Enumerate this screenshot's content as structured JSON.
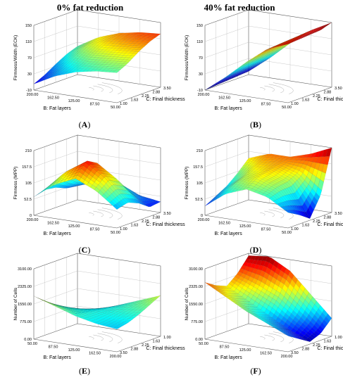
{
  "column_titles": [
    "0% fat reduction",
    "40% fat reduction"
  ],
  "chart_data": [
    {
      "type": "surface3d",
      "panel": "A",
      "column": 0,
      "row": 0,
      "zlabel": "Firmness/Width (ECK)",
      "xlabel": "B: Fat layers",
      "ylabel": "C: Final thickness",
      "zticks": [
        "150",
        "110",
        "70",
        "30",
        "-10"
      ],
      "zlim": [
        -10,
        150
      ],
      "xticks": [
        "200.00",
        "162.50",
        "125.00",
        "87.50",
        "50.00"
      ],
      "yticks": [
        "1.00",
        "1.63",
        "2.25",
        "2.88",
        "3.50"
      ],
      "grid": [
        [
          5,
          32,
          50,
          60,
          64
        ],
        [
          18,
          46,
          64,
          74,
          78
        ],
        [
          35,
          64,
          82,
          92,
          97
        ],
        [
          50,
          80,
          98,
          108,
          112
        ],
        [
          60,
          90,
          108,
          118,
          122
        ]
      ],
      "panel_label": "A"
    },
    {
      "type": "surface3d",
      "panel": "B",
      "column": 1,
      "row": 0,
      "zlabel": "Firmness/Width (ECK)",
      "xlabel": "B: Fat layers",
      "ylabel": "C: Final thickness",
      "zticks": [
        "150",
        "110",
        "70",
        "30",
        "-10"
      ],
      "zlim": [
        -10,
        150
      ],
      "xticks": [
        "200.00",
        "162.50",
        "125.00",
        "87.50",
        "50.00"
      ],
      "yticks": [
        "1.00",
        "1.63",
        "2.25",
        "2.88",
        "3.50"
      ],
      "grid": [
        [
          -10,
          30,
          75,
          115,
          135
        ],
        [
          -8,
          32,
          77,
          117,
          137
        ],
        [
          -6,
          34,
          79,
          119,
          139
        ],
        [
          -4,
          36,
          81,
          121,
          141
        ],
        [
          -2,
          38,
          83,
          123,
          150
        ]
      ],
      "panel_label": "B"
    },
    {
      "type": "surface3d",
      "panel": "C",
      "column": 0,
      "row": 1,
      "zlabel": "Firmness (MPP)",
      "xlabel": "B: Fat layers",
      "ylabel": "C: Final thickness",
      "zticks": [
        "210",
        "157.5",
        "105",
        "52.5",
        "0"
      ],
      "zlim": [
        0,
        210
      ],
      "xticks": [
        "200.00",
        "162.50",
        "125.00",
        "87.50",
        "50.00"
      ],
      "yticks": [
        "1.00",
        "1.63",
        "2.25",
        "2.88",
        "3.50"
      ],
      "grid": [
        [
          60,
          110,
          140,
          110,
          60
        ],
        [
          70,
          140,
          185,
          140,
          70
        ],
        [
          65,
          130,
          165,
          120,
          55
        ],
        [
          50,
          95,
          110,
          70,
          30
        ],
        [
          45,
          70,
          75,
          45,
          35
        ]
      ],
      "panel_label": "C"
    },
    {
      "type": "surface3d",
      "panel": "D",
      "column": 1,
      "row": 1,
      "zlabel": "Firmness (MPP)",
      "xlabel": "B: Fat layers",
      "ylabel": "C: Final thickness",
      "zticks": [
        "210",
        "157.5",
        "105",
        "52.5",
        "0"
      ],
      "zlim": [
        0,
        210
      ],
      "xticks": [
        "200.00",
        "162.50",
        "125.00",
        "87.50",
        "50.00"
      ],
      "yticks": [
        "1.00",
        "1.63",
        "2.25",
        "2.88",
        "3.50"
      ],
      "grid": [
        [
          30,
          80,
          105,
          90,
          50
        ],
        [
          50,
          105,
          130,
          105,
          30
        ],
        [
          70,
          120,
          140,
          110,
          5
        ],
        [
          100,
          140,
          150,
          130,
          70
        ],
        [
          135,
          160,
          160,
          180,
          210
        ]
      ],
      "panel_label": "D"
    },
    {
      "type": "surface3d",
      "panel": "E",
      "column": 0,
      "row": 2,
      "zlabel": "Number of Cells",
      "xlabel": "B: Fat layers",
      "ylabel": "C: Final thickness",
      "zticks": [
        "3100.00",
        "2325.00",
        "1550.00",
        "775.00",
        "0.00"
      ],
      "zlim": [
        0,
        3100
      ],
      "xticks": [
        "50.00",
        "87.50",
        "125.00",
        "162.50",
        "200.00"
      ],
      "yticks": [
        "3.50",
        "2.88",
        "2.25",
        "1.63",
        "1.00"
      ],
      "grid": [
        [
          1900,
          1600,
          1300,
          1100,
          1000
        ],
        [
          1500,
          1350,
          1250,
          1150,
          1100
        ],
        [
          1150,
          1150,
          1200,
          1250,
          1300
        ],
        [
          800,
          950,
          1150,
          1350,
          1550
        ],
        [
          400,
          750,
          1100,
          1450,
          1800
        ]
      ],
      "panel_label": "E"
    },
    {
      "type": "surface3d",
      "panel": "F",
      "column": 1,
      "row": 2,
      "zlabel": "Number of Cells",
      "xlabel": "B: Fat layers",
      "ylabel": "C: Final thickness",
      "zticks": [
        "3100.00",
        "2325.00",
        "1550.00",
        "775.00",
        "0.00"
      ],
      "zlim": [
        0,
        3100
      ],
      "xticks": [
        "50.00",
        "87.50",
        "125.00",
        "162.50",
        "200.00"
      ],
      "yticks": [
        "3.50",
        "2.88",
        "2.25",
        "1.63",
        "1.00"
      ],
      "grid": [
        [
          2500,
          2000,
          1500,
          1100,
          700
        ],
        [
          2200,
          1700,
          1200,
          800,
          400
        ],
        [
          2000,
          1500,
          1000,
          500,
          100
        ],
        [
          2400,
          2100,
          1700,
          1000,
          300
        ],
        [
          3000,
          3100,
          2600,
          1700,
          800
        ]
      ],
      "panel_label": "F"
    }
  ]
}
